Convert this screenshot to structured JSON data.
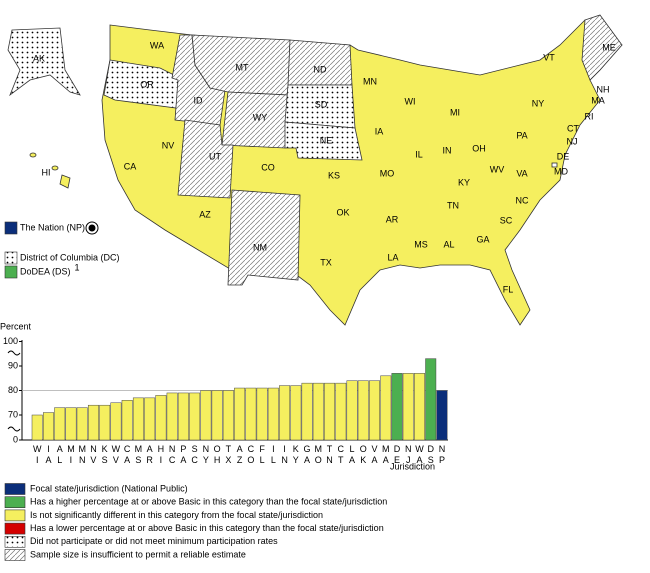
{
  "map": {
    "states": [
      {
        "code": "WA",
        "fill": "yellow"
      },
      {
        "code": "OR",
        "fill": "dots"
      },
      {
        "code": "CA",
        "fill": "yellow"
      },
      {
        "code": "NV",
        "fill": "yellow"
      },
      {
        "code": "ID",
        "fill": "hatch"
      },
      {
        "code": "MT",
        "fill": "hatch"
      },
      {
        "code": "WY",
        "fill": "hatch"
      },
      {
        "code": "UT",
        "fill": "hatch"
      },
      {
        "code": "AZ",
        "fill": "yellow"
      },
      {
        "code": "CO",
        "fill": "yellow"
      },
      {
        "code": "NM",
        "fill": "hatch"
      },
      {
        "code": "ND",
        "fill": "hatch"
      },
      {
        "code": "SD",
        "fill": "dots"
      },
      {
        "code": "NE",
        "fill": "dots"
      },
      {
        "code": "KS",
        "fill": "yellow"
      },
      {
        "code": "OK",
        "fill": "yellow"
      },
      {
        "code": "TX",
        "fill": "yellow"
      },
      {
        "code": "MN",
        "fill": "yellow"
      },
      {
        "code": "IA",
        "fill": "yellow"
      },
      {
        "code": "MO",
        "fill": "yellow"
      },
      {
        "code": "AR",
        "fill": "yellow"
      },
      {
        "code": "LA",
        "fill": "yellow"
      },
      {
        "code": "WI",
        "fill": "yellow"
      },
      {
        "code": "IL",
        "fill": "yellow"
      },
      {
        "code": "MS",
        "fill": "yellow"
      },
      {
        "code": "AL",
        "fill": "yellow"
      },
      {
        "code": "TN",
        "fill": "yellow"
      },
      {
        "code": "KY",
        "fill": "yellow"
      },
      {
        "code": "IN",
        "fill": "yellow"
      },
      {
        "code": "MI",
        "fill": "yellow"
      },
      {
        "code": "OH",
        "fill": "yellow"
      },
      {
        "code": "WV",
        "fill": "yellow"
      },
      {
        "code": "VA",
        "fill": "yellow"
      },
      {
        "code": "NC",
        "fill": "yellow"
      },
      {
        "code": "SC",
        "fill": "yellow"
      },
      {
        "code": "GA",
        "fill": "yellow"
      },
      {
        "code": "FL",
        "fill": "yellow"
      },
      {
        "code": "PA",
        "fill": "yellow"
      },
      {
        "code": "NY",
        "fill": "yellow"
      },
      {
        "code": "VT",
        "fill": "yellow"
      },
      {
        "code": "NH",
        "fill": "yellow"
      },
      {
        "code": "ME",
        "fill": "hatch"
      },
      {
        "code": "MA",
        "fill": "yellow"
      },
      {
        "code": "RI",
        "fill": "yellow"
      },
      {
        "code": "CT",
        "fill": "yellow"
      },
      {
        "code": "NJ",
        "fill": "yellow"
      },
      {
        "code": "DE",
        "fill": "yellow"
      },
      {
        "code": "MD",
        "fill": "yellow"
      },
      {
        "code": "AK",
        "fill": "dots"
      },
      {
        "code": "HI",
        "fill": "yellow"
      }
    ],
    "side_legend": [
      {
        "label": "The Nation (NP)",
        "fill": "#0b2e7a"
      },
      {
        "label": "District of Columbia (DC)",
        "fill": "dots"
      },
      {
        "label": "DoDEA (DS)",
        "fill": "#4caf50",
        "footnote": "1"
      }
    ]
  },
  "chart_data": {
    "type": "bar",
    "y_label": "Percent",
    "x_label": "Jurisdiction",
    "categories": [
      "WI",
      "IA",
      "AL",
      "MI",
      "MN",
      "NV",
      "KS",
      "WV",
      "CA",
      "MS",
      "AR",
      "HI",
      "NC",
      "PA",
      "SC",
      "NY",
      "OH",
      "TX",
      "AZ",
      "CO",
      "FL",
      "IL",
      "IN",
      "KY",
      "GA",
      "MO",
      "TN",
      "CT",
      "LA",
      "OK",
      "VA",
      "MA",
      "DE",
      "NJ",
      "WA",
      "DS",
      "NP"
    ],
    "values": [
      70,
      71,
      73,
      73,
      73,
      74,
      74,
      75,
      76,
      77,
      77,
      78,
      79,
      79,
      79,
      80,
      80,
      80,
      81,
      81,
      81,
      81,
      82,
      82,
      83,
      83,
      83,
      83,
      84,
      84,
      84,
      86,
      87,
      87,
      87,
      93,
      80
    ],
    "colors": [
      "#f5ef5f",
      "#f5ef5f",
      "#f5ef5f",
      "#f5ef5f",
      "#f5ef5f",
      "#f5ef5f",
      "#f5ef5f",
      "#f5ef5f",
      "#f5ef5f",
      "#f5ef5f",
      "#f5ef5f",
      "#f5ef5f",
      "#f5ef5f",
      "#f5ef5f",
      "#f5ef5f",
      "#f5ef5f",
      "#f5ef5f",
      "#f5ef5f",
      "#f5ef5f",
      "#f5ef5f",
      "#f5ef5f",
      "#f5ef5f",
      "#f5ef5f",
      "#f5ef5f",
      "#f5ef5f",
      "#f5ef5f",
      "#f5ef5f",
      "#f5ef5f",
      "#f5ef5f",
      "#f5ef5f",
      "#f5ef5f",
      "#f5ef5f",
      "#4caf50",
      "#f5ef5f",
      "#f5ef5f",
      "#4caf50",
      "#0b2e7a"
    ],
    "ylim": [
      0,
      100
    ],
    "yticks": [
      0,
      70,
      80,
      90,
      100
    ],
    "focal_index": 36,
    "legend": [
      {
        "label": "Focal state/jurisdiction (National Public)",
        "fill": "#0b2e7a"
      },
      {
        "label": "Has a higher percentage at or above Basic in this category than the focal state/jurisdiction",
        "fill": "#4caf50"
      },
      {
        "label": "Is not significantly different in this category from the focal state/jurisdiction",
        "fill": "#f5ef5f"
      },
      {
        "label": "Has a lower percentage at or above Basic in this category than the focal state/jurisdiction",
        "fill": "#d40000"
      },
      {
        "label": "Did not participate or did not meet minimum participation rates",
        "fill": "dots"
      },
      {
        "label": "Sample size is insufficient to permit a reliable estimate",
        "fill": "hatch"
      }
    ]
  }
}
